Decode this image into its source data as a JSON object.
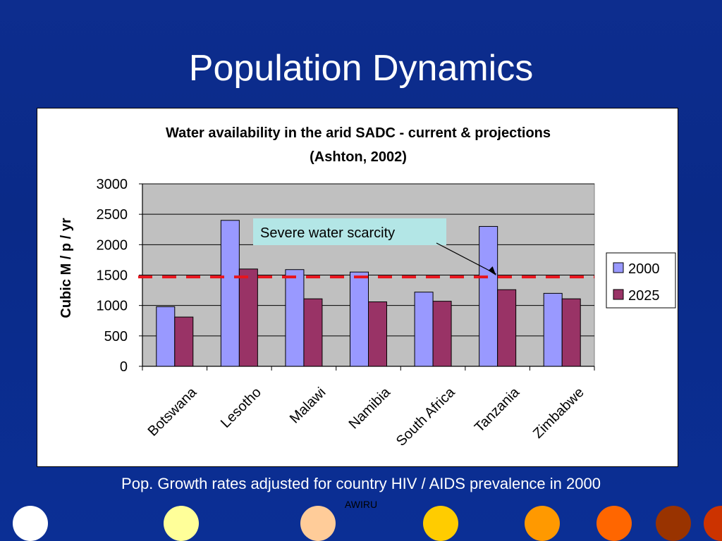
{
  "slide": {
    "title": "Population Dynamics",
    "caption": "Pop. Growth rates adjusted for country HIV / AIDS prevalence in 2000",
    "footer": "AWIRU",
    "dot_colors": [
      "#ffffff",
      "#ffff99",
      "#ffcc99",
      "#ffcc00",
      "#ff9900",
      "#ff6600",
      "#993300",
      "#cc3300"
    ]
  },
  "chart_data": {
    "type": "bar",
    "title_line1": "Water availability in the arid SADC - current & projections",
    "title_line2": "(Ashton, 2002)",
    "ylabel": "Cubic M / p / yr",
    "xlabel": "",
    "ylim": [
      0,
      3000
    ],
    "yticks": [
      0,
      500,
      1000,
      1500,
      2000,
      2500,
      3000
    ],
    "grid": true,
    "legend": "right",
    "categories": [
      "Botswana",
      "Lesotho",
      "Malawi",
      "Namibia",
      "South Africa",
      "Tanzania",
      "Zimbabwe"
    ],
    "series": [
      {
        "name": "2000",
        "color": "#9999ff",
        "values": [
          980,
          2400,
          1590,
          1550,
          1220,
          2300,
          1200
        ]
      },
      {
        "name": "2025",
        "color": "#993366",
        "values": [
          810,
          1600,
          1110,
          1060,
          1070,
          1260,
          1110
        ]
      }
    ],
    "threshold": {
      "value": 1470,
      "color": "#e8141c"
    },
    "annotation": {
      "text": "Severe water scarcity",
      "category": "Tanzania"
    }
  }
}
